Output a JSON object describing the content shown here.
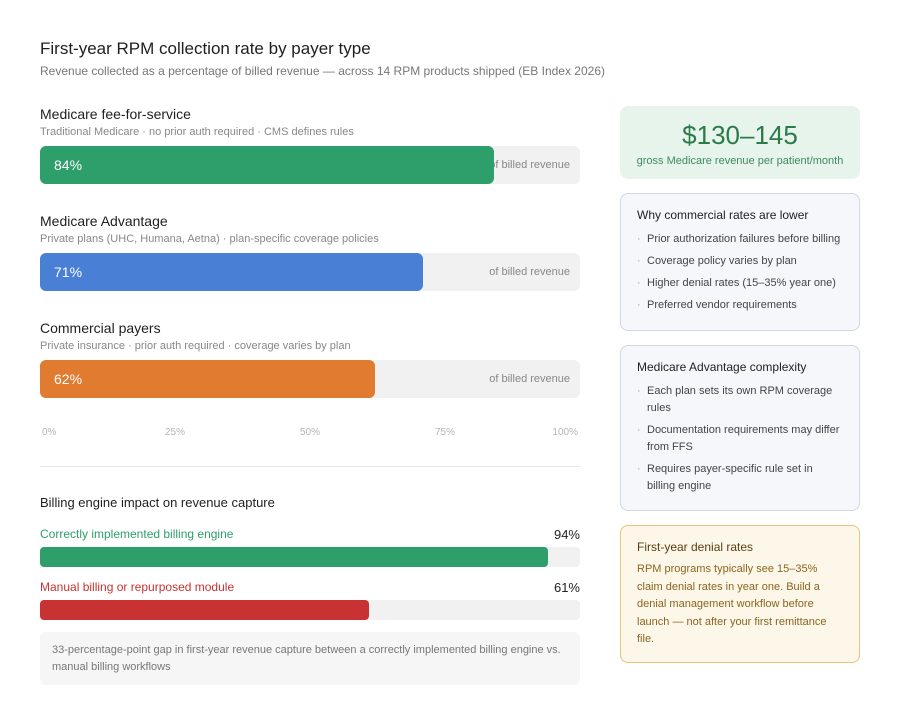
{
  "header": {
    "title": "First-year RPM collection rate by payer type",
    "subtitle": "Revenue collected as a percentage of billed revenue — across 14 RPM products shipped (EB Index 2026)"
  },
  "chart_data": [
    {
      "type": "bar",
      "orientation": "horizontal",
      "categories": [
        "Medicare fee-for-service",
        "Medicare Advantage",
        "Commercial payers"
      ],
      "descriptions": [
        "Traditional Medicare · no prior auth required · CMS defines rules",
        "Private plans (UHC, Humana, Aetna) · plan-specific coverage policies",
        "Private insurance · prior auth required · coverage varies by plan"
      ],
      "values": [
        84,
        71,
        62
      ],
      "value_labels": [
        "84%",
        "71%",
        "62%"
      ],
      "unit_label": "of billed revenue",
      "colors": [
        "#2e9e6b",
        "#4a7fd6",
        "#e07b2f"
      ],
      "xlim": [
        0,
        100
      ],
      "xticks": [
        "0%",
        "25%",
        "50%",
        "75%",
        "100%"
      ]
    },
    {
      "type": "bar",
      "orientation": "horizontal",
      "title": "Billing engine impact on revenue capture",
      "categories": [
        "Correctly implemented billing engine",
        "Manual billing or repurposed module"
      ],
      "values": [
        94,
        61
      ],
      "value_labels": [
        "94%",
        "61%"
      ],
      "colors": [
        "#2e9e6b",
        "#c83232"
      ],
      "xlim": [
        0,
        100
      ]
    }
  ],
  "note": "33-percentage-point gap in first-year revenue capture between a correctly implemented billing engine vs. manual billing workflows",
  "sidebar": {
    "kpi": {
      "value": "$130–145",
      "label": "gross Medicare revenue per patient/month"
    },
    "commercial_card": {
      "title": "Why commercial rates are lower",
      "items": [
        "Prior authorization failures before billing",
        "Coverage policy varies by plan",
        "Higher denial rates (15–35% year one)",
        "Preferred vendor requirements"
      ]
    },
    "ma_card": {
      "title": "Medicare Advantage complexity",
      "items": [
        "Each plan sets its own RPM coverage rules",
        "Documentation requirements may differ from FFS",
        "Requires payer-specific rule set in billing engine"
      ]
    },
    "denial_card": {
      "title": "First-year denial rates",
      "text": "RPM programs typically see 15–35% claim denial rates in year one. Build a denial management workflow before launch — not after your first remittance file."
    }
  }
}
